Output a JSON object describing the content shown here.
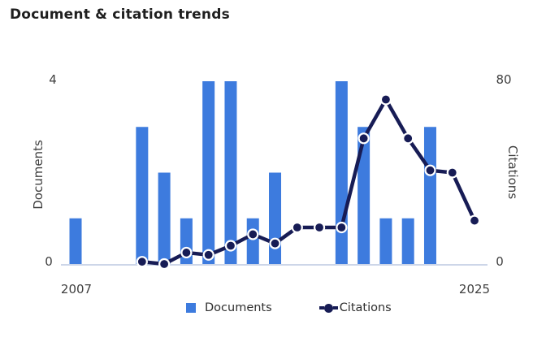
{
  "title": "Document & citation trends",
  "colors": {
    "bar": "#3D7BDE",
    "line": "#171C55",
    "axis_line": "#CDD6E8",
    "tick_text": "#3F3F3F",
    "title_text": "#1F1F1F",
    "legend_text": "#2F2F2F",
    "background": "#FFFFFF"
  },
  "chart_data": {
    "type": "combo-bar-line",
    "title": "Document & citation trends",
    "x_axis": {
      "min": 2007,
      "max": 2025,
      "tick_labels": [
        "2007",
        "2025"
      ]
    },
    "left_axis": {
      "title": "Documents",
      "min": 0,
      "max": 4,
      "tick_labels": [
        "0",
        "4"
      ]
    },
    "right_axis": {
      "title": "Citations",
      "min": 0,
      "max": 80,
      "tick_labels": [
        "0",
        "80"
      ]
    },
    "grid": "off",
    "series": [
      {
        "name": "Documents",
        "type": "bar",
        "yaxis": "left",
        "years": [
          2007,
          2010,
          2011,
          2012,
          2013,
          2014,
          2015,
          2016,
          2019,
          2020,
          2021,
          2022,
          2023
        ],
        "values": [
          1,
          3,
          2,
          1,
          4,
          4,
          1,
          2,
          4,
          3,
          1,
          1,
          3
        ]
      },
      {
        "name": "Citations",
        "type": "line",
        "yaxis": "right",
        "years": [
          2010,
          2011,
          2012,
          2013,
          2014,
          2015,
          2016,
          2017,
          2018,
          2019,
          2020,
          2021,
          2022,
          2023,
          2024,
          2025
        ],
        "values": [
          1,
          0,
          5,
          4,
          8,
          13,
          9,
          16,
          16,
          16,
          55,
          72,
          55,
          41,
          40,
          19
        ]
      }
    ],
    "legend": {
      "position": "bottom",
      "entries": [
        {
          "label": "Documents",
          "marker": "square"
        },
        {
          "label": "Citations",
          "marker": "line-dot"
        }
      ]
    }
  }
}
